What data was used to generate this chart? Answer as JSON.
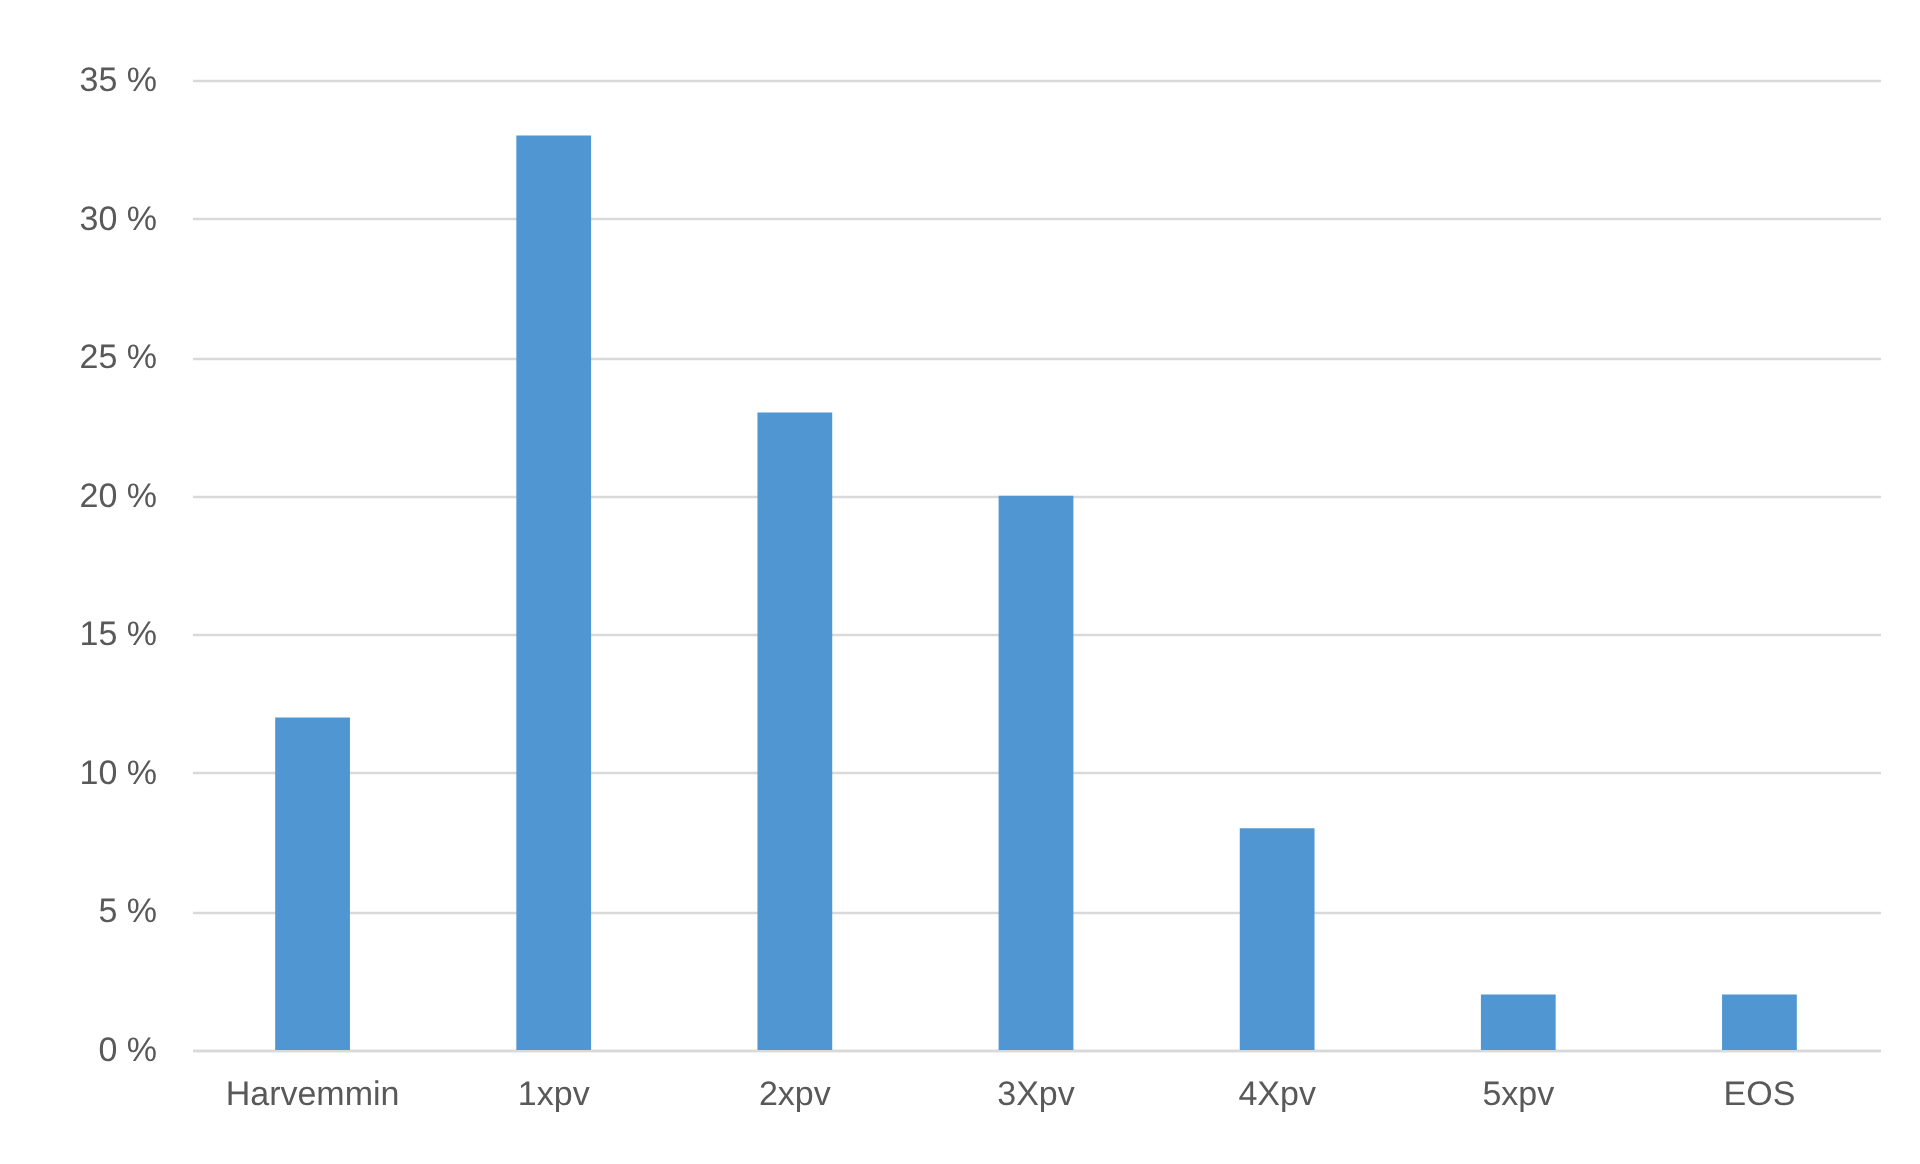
{
  "chart_data": {
    "type": "bar",
    "categories": [
      "Harvemmin",
      "1xpv",
      "2xpv",
      "3Xpv",
      "4Xpv",
      "5xpv",
      "EOS"
    ],
    "values": [
      12,
      33,
      23,
      20,
      8,
      2,
      2
    ],
    "color": "#5096d2",
    "ylim": [
      0,
      35
    ],
    "yticks": [
      {
        "value": 0,
        "label": "0 %"
      },
      {
        "value": 5,
        "label": "5 %"
      },
      {
        "value": 10,
        "label": "10 %"
      },
      {
        "value": 15,
        "label": "15 %"
      },
      {
        "value": 20,
        "label": "20 %"
      },
      {
        "value": 25,
        "label": "25 %"
      },
      {
        "value": 30,
        "label": "30 %"
      },
      {
        "value": 35,
        "label": "35 %"
      }
    ],
    "grid": "y"
  }
}
